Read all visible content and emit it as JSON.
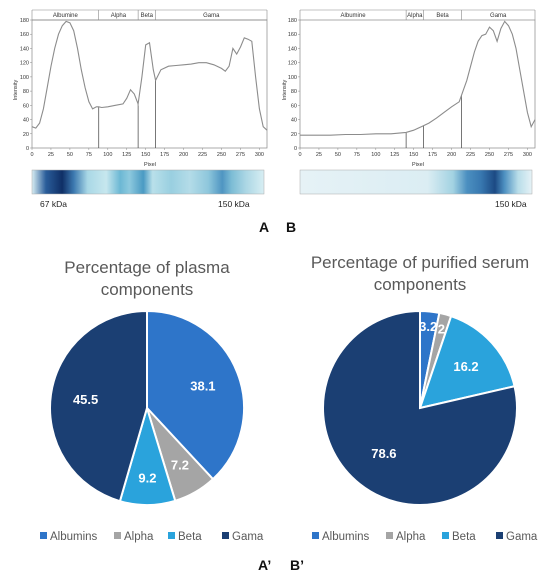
{
  "colors": {
    "albumins": "#2e75c9",
    "alpha": "#a5a5a5",
    "beta": "#2aa3dc",
    "gama": "#1b3f73",
    "curve": "#8c8c8c"
  },
  "chart_data": [
    {
      "type": "line",
      "panel": "A",
      "xlabel": "Pixel",
      "ylabel": "Intensity",
      "xlim": [
        0,
        310
      ],
      "ylim": [
        0,
        180
      ],
      "xticks": [
        "0",
        "25",
        "50",
        "75",
        "100",
        "125",
        "150",
        "175",
        "200",
        "225",
        "250",
        "275",
        "300"
      ],
      "yticks": [
        "0",
        "20",
        "40",
        "60",
        "80",
        "100",
        "120",
        "140",
        "160",
        "180"
      ],
      "segments": [
        "Albumine",
        "Alpha",
        "Beta",
        "Gama"
      ],
      "segment_bounds": [
        0,
        88,
        140,
        163,
        310
      ],
      "series": [
        {
          "x": [
            0,
            5,
            10,
            15,
            20,
            25,
            30,
            35,
            40,
            45,
            50,
            55,
            60,
            65,
            70,
            75,
            80,
            85,
            88,
            92,
            100,
            110,
            120,
            125,
            130,
            135,
            140,
            145,
            150,
            155,
            160,
            163,
            170,
            180,
            190,
            200,
            210,
            220,
            230,
            240,
            250,
            255,
            260,
            265,
            270,
            275,
            280,
            285,
            290,
            295,
            300,
            305,
            310
          ],
          "y": [
            30,
            28,
            35,
            55,
            85,
            115,
            140,
            160,
            172,
            178,
            176,
            165,
            140,
            110,
            85,
            65,
            55,
            58,
            58,
            57,
            58,
            60,
            62,
            70,
            82,
            76,
            62,
            100,
            145,
            148,
            110,
            95,
            110,
            115,
            116,
            117,
            118,
            120,
            120,
            117,
            112,
            108,
            115,
            140,
            132,
            142,
            155,
            153,
            150,
            100,
            55,
            30,
            25
          ]
        }
      ],
      "band_labels": [
        "67 kDa",
        "150 kDa"
      ]
    },
    {
      "type": "line",
      "panel": "B",
      "xlabel": "Pixel",
      "ylabel": "Intensity",
      "xlim": [
        0,
        310
      ],
      "ylim": [
        0,
        180
      ],
      "xticks": [
        "0",
        "25",
        "50",
        "75",
        "100",
        "125",
        "150",
        "175",
        "200",
        "225",
        "250",
        "275",
        "300"
      ],
      "yticks": [
        "0",
        "20",
        "40",
        "60",
        "80",
        "100",
        "120",
        "140",
        "160",
        "180"
      ],
      "segments": [
        "Albumine",
        "Alpha",
        "Beta",
        "Gama"
      ],
      "segment_bounds": [
        0,
        140,
        163,
        213,
        310
      ],
      "series": [
        {
          "x": [
            0,
            20,
            40,
            60,
            80,
            100,
            120,
            140,
            150,
            160,
            170,
            180,
            190,
            200,
            210,
            215,
            220,
            225,
            230,
            235,
            240,
            245,
            250,
            255,
            260,
            265,
            270,
            275,
            280,
            285,
            290,
            295,
            300,
            305,
            310
          ],
          "y": [
            18,
            18,
            18,
            19,
            19,
            20,
            20,
            22,
            25,
            30,
            35,
            42,
            50,
            58,
            65,
            80,
            95,
            115,
            135,
            150,
            158,
            160,
            170,
            165,
            150,
            168,
            178,
            172,
            160,
            140,
            110,
            80,
            50,
            30,
            40
          ]
        }
      ],
      "band_labels": [
        "150 kDa"
      ]
    },
    {
      "type": "pie",
      "panel": "A’",
      "title": "Percentage of plasma components",
      "title_lines": [
        "Percentage of plasma",
        "components"
      ],
      "labels": [
        "Albumins",
        "Alpha",
        "Beta",
        "Gama"
      ],
      "values": [
        38.1,
        7.2,
        9.2,
        45.5
      ],
      "value_labels": [
        "38.1",
        "7.2",
        "9.2",
        "45.5"
      ],
      "legend": "bottom"
    },
    {
      "type": "pie",
      "panel": "B’",
      "title": "Percentage of purified serum components",
      "title_lines": [
        "Percentage of purified serum",
        "components"
      ],
      "labels": [
        "Albumins",
        "Alpha",
        "Beta",
        "Gama"
      ],
      "values": [
        3.2,
        2,
        16.2,
        78.6
      ],
      "value_labels": [
        "3.2",
        "2",
        "16.2",
        "78.6"
      ],
      "legend": "bottom"
    }
  ]
}
